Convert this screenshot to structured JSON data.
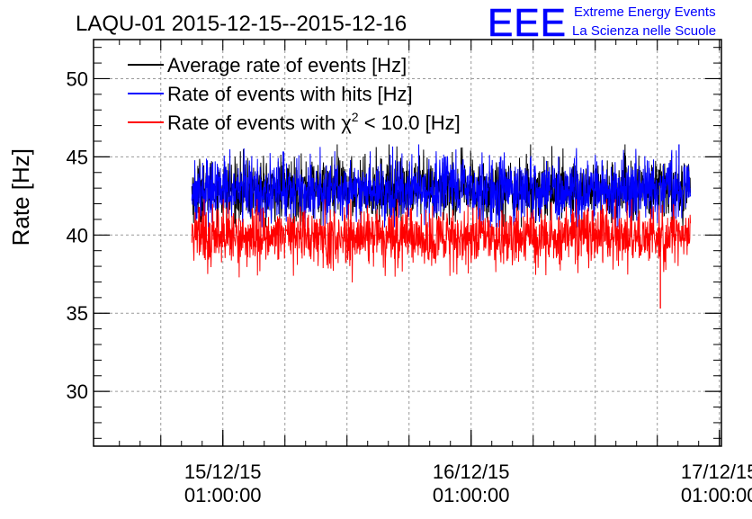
{
  "chart_data": {
    "type": "line",
    "title": "LAQU-01 2015-12-15--2015-12-16",
    "xlabel": "",
    "ylabel": "Rate [Hz]",
    "ylim": [
      26.5,
      52.5
    ],
    "yticks": [
      30,
      35,
      40,
      45,
      50
    ],
    "xlim_hours": [
      -12.5,
      48.2
    ],
    "xticks": [
      {
        "hour": 0,
        "date": "15/12/15",
        "time": "01:00:00"
      },
      {
        "hour": 24,
        "date": "16/12/15",
        "time": "01:00:00"
      },
      {
        "hour": 48,
        "date": "17/12/15",
        "time": "01:00:00"
      }
    ],
    "grid": true,
    "legend_position": "top-left",
    "series": [
      {
        "name": "Average rate of events [Hz]",
        "color": "#000000",
        "start_hour": -3.0,
        "end_hour": 45.2,
        "mean": 42.9,
        "spread": 1.0,
        "min": 40.5,
        "max": 45.8
      },
      {
        "name": "Rate of events with hits [Hz]",
        "color": "#0000ff",
        "start_hour": -3.0,
        "end_hour": 45.2,
        "mean": 42.9,
        "spread": 1.0,
        "min": 40.5,
        "max": 45.8
      },
      {
        "name": "Rate of events with χ² < 10.0 [Hz]",
        "color": "#ff0000",
        "start_hour": -3.0,
        "end_hour": 45.2,
        "mean": 39.9,
        "spread": 0.95,
        "min": 35.3,
        "max": 42.3
      }
    ],
    "legend": {
      "entry_black": {
        "label_text": "Average rate of events [Hz]"
      },
      "entry_blue": {
        "label_text": "Rate of events with hits [Hz]"
      },
      "entry_red": {
        "label_prefix": "Rate of events with ",
        "chi": "χ",
        "sup": "2",
        "label_suffix": " < 10.0 [Hz]"
      }
    }
  },
  "logo": {
    "letters": "EEE",
    "line1": "Extreme Energy Events",
    "line2": "La Scienza nelle Scuole",
    "color": "#0000ff"
  }
}
